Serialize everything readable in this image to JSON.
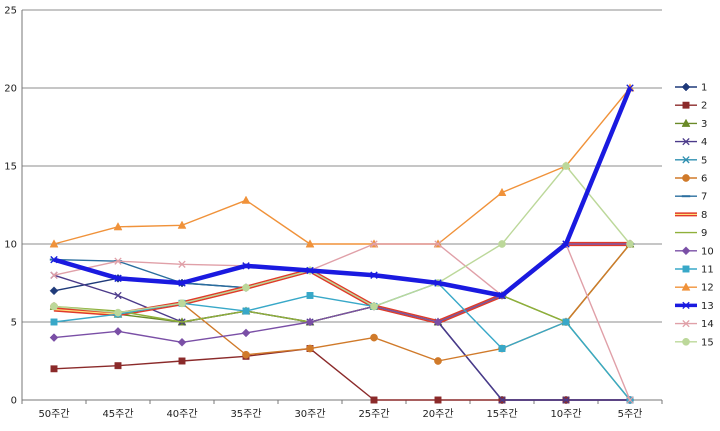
{
  "chart_data": {
    "type": "line",
    "title": "",
    "xlabel": "",
    "ylabel": "",
    "categories": [
      "50주간",
      "45주간",
      "40주간",
      "35주간",
      "30주간",
      "25주간",
      "20주간",
      "15주간",
      "10주간",
      "5주간"
    ],
    "ylim": [
      0,
      25
    ],
    "yticks": [
      0,
      5,
      10,
      15,
      20,
      25
    ],
    "grid": "horizontal",
    "legend_position": "right",
    "series": [
      {
        "name": "1",
        "color": "#1F3A7A",
        "marker": "diamond",
        "values": [
          7,
          7.8,
          7.5,
          7.2,
          8.3,
          6,
          5,
          0,
          0,
          0
        ]
      },
      {
        "name": "2",
        "color": "#8B2A2A",
        "marker": "square",
        "values": [
          2,
          2.2,
          2.5,
          2.8,
          3.3,
          0,
          0,
          0,
          0,
          0
        ]
      },
      {
        "name": "3",
        "color": "#6A8A28",
        "marker": "triangle",
        "values": [
          6,
          5.5,
          5,
          5.7,
          5,
          6,
          5,
          6.7,
          5,
          10
        ]
      },
      {
        "name": "4",
        "color": "#4B3A8A",
        "marker": "x",
        "values": [
          8,
          6.7,
          5,
          5.7,
          5,
          6,
          5,
          0,
          0,
          0
        ]
      },
      {
        "name": "5",
        "color": "#2E8FB0",
        "marker": "x",
        "values": [
          9,
          7.8,
          7.5,
          8.6,
          8.3,
          8,
          7.5,
          6.7,
          10,
          20
        ]
      },
      {
        "name": "6",
        "color": "#D07A2A",
        "marker": "circle",
        "values": [
          6,
          5.5,
          6.2,
          2.9,
          3.3,
          4,
          2.5,
          3.3,
          5,
          10
        ]
      },
      {
        "name": "7",
        "color": "#2A6E9E",
        "marker": "dash",
        "values": [
          9,
          8.9,
          7.5,
          7.2,
          8.3,
          6,
          5,
          6.7,
          10,
          10
        ]
      },
      {
        "name": "8",
        "color": "#E03A2A",
        "marker": "none",
        "values": [
          5.8,
          5.5,
          6.2,
          7.2,
          8.3,
          6,
          5,
          6.7,
          10,
          10
        ]
      },
      {
        "name": "9",
        "color": "#8FB03A",
        "marker": "none",
        "values": [
          6,
          5.7,
          5,
          5.7,
          5,
          6,
          5,
          6.7,
          5,
          0
        ]
      },
      {
        "name": "10",
        "color": "#7A4FA6",
        "marker": "diamond",
        "values": [
          4,
          4.4,
          3.7,
          4.3,
          5,
          6,
          5,
          6.7,
          10,
          10
        ]
      },
      {
        "name": "11",
        "color": "#38A8C8",
        "marker": "square",
        "values": [
          5,
          5.5,
          6.2,
          5.7,
          6.7,
          6,
          7.5,
          3.3,
          5,
          0
        ]
      },
      {
        "name": "12",
        "color": "#F0923A",
        "marker": "triangle",
        "values": [
          10,
          11.1,
          11.2,
          12.8,
          10,
          10,
          10,
          13.3,
          15,
          20
        ]
      },
      {
        "name": "13",
        "color": "#1A1AE0",
        "marker": "x",
        "values": [
          9,
          7.8,
          7.5,
          8.6,
          8.3,
          8,
          7.5,
          6.7,
          10,
          20
        ]
      },
      {
        "name": "14",
        "color": "#E0A0A8",
        "marker": "x",
        "values": [
          8,
          8.9,
          8.7,
          8.6,
          8.3,
          10,
          10,
          6.7,
          10,
          0
        ]
      },
      {
        "name": "15",
        "color": "#BCD89A",
        "marker": "circle",
        "values": [
          6,
          5.6,
          6.2,
          7.2,
          8.3,
          6,
          7.5,
          10,
          15,
          10
        ]
      }
    ]
  }
}
